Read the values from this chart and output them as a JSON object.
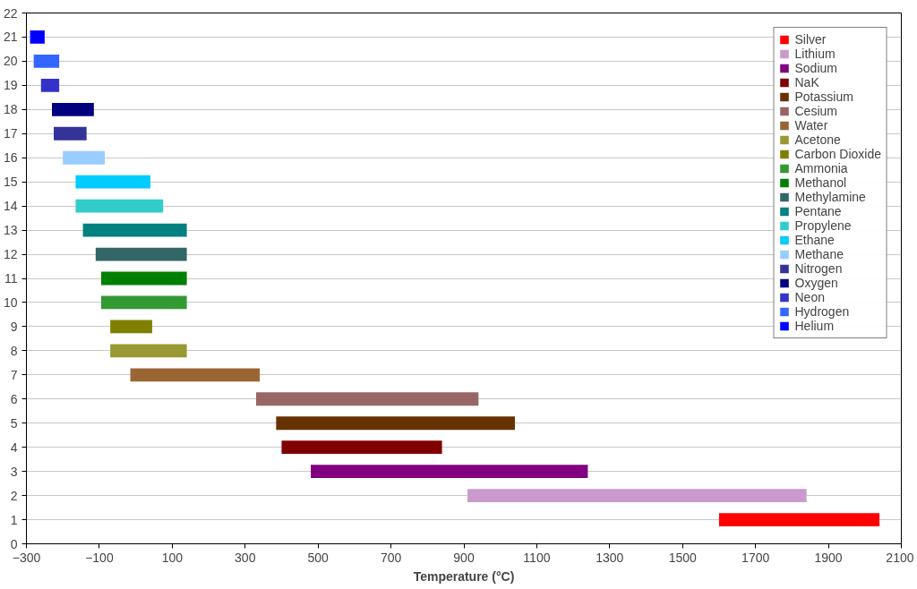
{
  "chart_data": {
    "type": "bar",
    "orientation": "horizontal",
    "xlabel": "Temperature (°C)",
    "xlim": [
      -300,
      2100
    ],
    "xticks": [
      -300,
      -100,
      100,
      300,
      500,
      700,
      900,
      1100,
      1300,
      1500,
      1700,
      1900,
      2100
    ],
    "ylim": [
      0,
      22
    ],
    "yticks": [
      0,
      1,
      2,
      3,
      4,
      5,
      6,
      7,
      8,
      9,
      10,
      11,
      12,
      13,
      14,
      15,
      16,
      17,
      18,
      19,
      20,
      21,
      22
    ],
    "grid": "y",
    "legend": "top right",
    "series": [
      {
        "name": "Silver",
        "color": "#ff0000",
        "x": [
          1
        ],
        "base": [
          1600
        ],
        "values": [
          440
        ]
      },
      {
        "name": "Lithium",
        "color": "#cc99cc",
        "x": [
          2
        ],
        "base": [
          910
        ],
        "values": [
          930
        ]
      },
      {
        "name": "Sodium",
        "color": "#800080",
        "x": [
          3
        ],
        "base": [
          480
        ],
        "values": [
          760
        ]
      },
      {
        "name": "NaK",
        "color": "#800000",
        "x": [
          4
        ],
        "base": [
          400
        ],
        "values": [
          440
        ]
      },
      {
        "name": "Potassium",
        "color": "#663300",
        "x": [
          5
        ],
        "base": [
          385
        ],
        "values": [
          655
        ]
      },
      {
        "name": "Cesium",
        "color": "#996666",
        "x": [
          6
        ],
        "base": [
          330
        ],
        "values": [
          610
        ]
      },
      {
        "name": "Water",
        "color": "#996633",
        "x": [
          7
        ],
        "base": [
          -15
        ],
        "values": [
          355
        ]
      },
      {
        "name": "Acetone",
        "color": "#999933",
        "x": [
          8
        ],
        "base": [
          -70
        ],
        "values": [
          210
        ]
      },
      {
        "name": "Carbon Dioxide",
        "color": "#808000",
        "x": [
          9
        ],
        "base": [
          -70
        ],
        "values": [
          115
        ]
      },
      {
        "name": "Ammonia",
        "color": "#339933",
        "x": [
          10
        ],
        "base": [
          -95
        ],
        "values": [
          235
        ]
      },
      {
        "name": "Methanol",
        "color": "#008000",
        "x": [
          11
        ],
        "base": [
          -95
        ],
        "values": [
          235
        ]
      },
      {
        "name": "Methylamine",
        "color": "#336666",
        "x": [
          12
        ],
        "base": [
          -110
        ],
        "values": [
          250
        ]
      },
      {
        "name": "Pentane",
        "color": "#008080",
        "x": [
          13
        ],
        "base": [
          -145
        ],
        "values": [
          285
        ]
      },
      {
        "name": "Propylene",
        "color": "#33cccc",
        "x": [
          14
        ],
        "base": [
          -165
        ],
        "values": [
          240
        ]
      },
      {
        "name": "Ethane",
        "color": "#00ccff",
        "x": [
          15
        ],
        "base": [
          -165
        ],
        "values": [
          205
        ]
      },
      {
        "name": "Methane",
        "color": "#99ccff",
        "x": [
          16
        ],
        "base": [
          -200
        ],
        "values": [
          115
        ]
      },
      {
        "name": "Nitrogen",
        "color": "#333399",
        "x": [
          17
        ],
        "base": [
          -225
        ],
        "values": [
          90
        ]
      },
      {
        "name": "Oxygen",
        "color": "#000080",
        "x": [
          18
        ],
        "base": [
          -230
        ],
        "values": [
          115
        ]
      },
      {
        "name": "Neon",
        "color": "#3333cc",
        "x": [
          19
        ],
        "base": [
          -260
        ],
        "values": [
          50
        ]
      },
      {
        "name": "Hydrogen",
        "color": "#3366ff",
        "x": [
          20
        ],
        "base": [
          -280
        ],
        "values": [
          70
        ]
      },
      {
        "name": "Helium",
        "color": "#0000ff",
        "x": [
          21
        ],
        "base": [
          -290
        ],
        "values": [
          40
        ]
      }
    ]
  }
}
